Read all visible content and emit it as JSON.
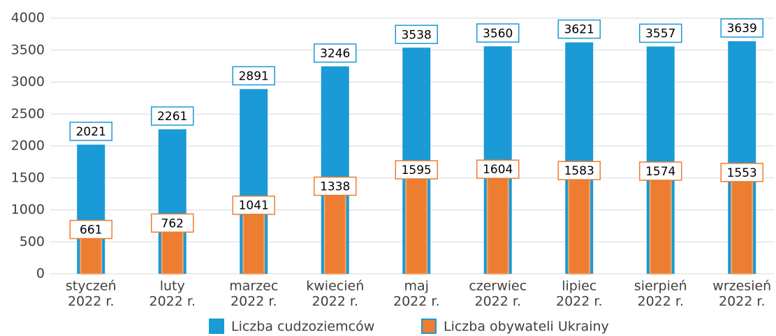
{
  "chart_data": {
    "type": "bar",
    "categories": [
      [
        "styczeń",
        "2022 r."
      ],
      [
        "luty",
        "2022 r."
      ],
      [
        "marzec",
        "2022 r."
      ],
      [
        "kwiecień",
        "2022 r."
      ],
      [
        "maj",
        "2022 r."
      ],
      [
        "czerwiec",
        "2022 r."
      ],
      [
        "lipiec",
        "2022 r."
      ],
      [
        "sierpień",
        "2022 r."
      ],
      [
        "wrzesień",
        "2022 r."
      ]
    ],
    "series": [
      {
        "name": "Liczba cudzoziemców",
        "color": "#1a9ad6",
        "values": [
          2021,
          2261,
          2891,
          3246,
          3538,
          3560,
          3621,
          3557,
          3639
        ]
      },
      {
        "name": "Liczba obywateli Ukrainy",
        "color": "#ed7d31",
        "values": [
          661,
          762,
          1041,
          1338,
          1595,
          1604,
          1583,
          1574,
          1553
        ]
      }
    ],
    "ylim": [
      0,
      4000
    ],
    "yticks": [
      0,
      500,
      1000,
      1500,
      2000,
      2500,
      3000,
      3500,
      4000
    ],
    "grid": true,
    "legend": "bottom"
  }
}
